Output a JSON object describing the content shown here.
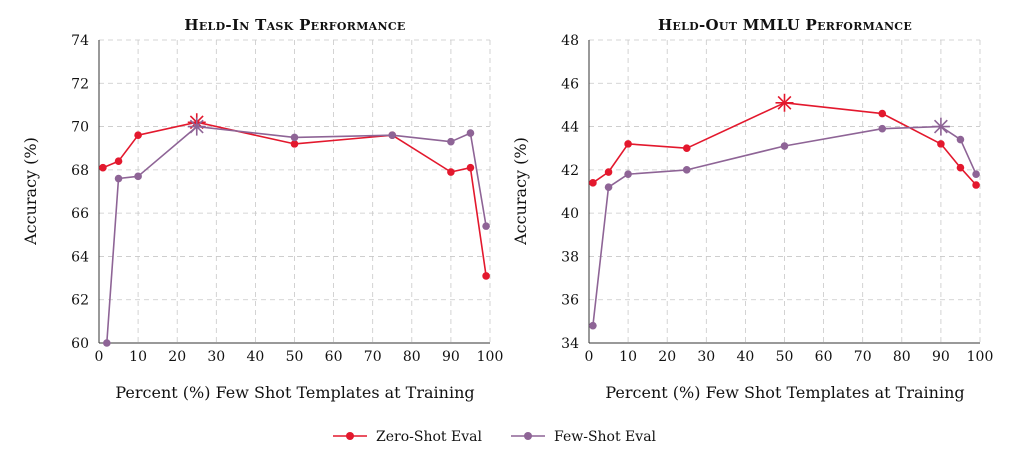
{
  "chart_data": [
    {
      "type": "line",
      "title": "Held-In Task Performance",
      "xlabel": "Percent (%) Few Shot Templates at Training",
      "ylabel": "Accuracy (%)",
      "xlim": [
        0,
        100
      ],
      "ylim": [
        60,
        74
      ],
      "xticks": [
        0,
        10,
        20,
        30,
        40,
        50,
        60,
        70,
        80,
        90,
        100
      ],
      "yticks": [
        60,
        62,
        64,
        66,
        68,
        70,
        72,
        74
      ],
      "grid": true,
      "series": [
        {
          "name": "Zero-Shot Eval",
          "color": "#e3182d",
          "x": [
            1,
            5,
            10,
            25,
            50,
            75,
            90,
            95,
            99
          ],
          "values": [
            68.1,
            68.4,
            69.6,
            70.2,
            69.2,
            69.6,
            67.9,
            68.1,
            63.1
          ],
          "best_index": 3
        },
        {
          "name": "Few-Shot Eval",
          "color": "#8e6496",
          "x": [
            2,
            5,
            10,
            25,
            50,
            75,
            90,
            95,
            99
          ],
          "values": [
            60.0,
            67.6,
            67.7,
            70.0,
            69.5,
            69.6,
            69.3,
            69.7,
            65.4
          ],
          "best_index": 3
        }
      ]
    },
    {
      "type": "line",
      "title": "Held-Out MMLU Performance",
      "xlabel": "Percent (%) Few Shot Templates at Training",
      "ylabel": "Accuracy (%)",
      "xlim": [
        0,
        100
      ],
      "ylim": [
        34,
        48
      ],
      "xticks": [
        0,
        10,
        20,
        30,
        40,
        50,
        60,
        70,
        80,
        90,
        100
      ],
      "yticks": [
        34,
        36,
        38,
        40,
        42,
        44,
        46,
        48
      ],
      "grid": true,
      "series": [
        {
          "name": "Zero-Shot Eval",
          "color": "#e3182d",
          "x": [
            1,
            5,
            10,
            25,
            50,
            75,
            90,
            95,
            99
          ],
          "values": [
            41.4,
            41.9,
            43.2,
            43.0,
            45.1,
            44.6,
            43.2,
            42.1,
            41.3
          ],
          "best_index": 4
        },
        {
          "name": "Few-Shot Eval",
          "color": "#8e6496",
          "x": [
            1,
            5,
            10,
            25,
            50,
            75,
            90,
            95,
            99
          ],
          "values": [
            34.8,
            41.2,
            41.8,
            42.0,
            43.1,
            43.9,
            44.0,
            43.4,
            41.8
          ],
          "best_index": 6
        }
      ]
    }
  ],
  "legend": {
    "position": "bottom-center",
    "items": [
      {
        "label": "Zero-Shot Eval",
        "color": "#e3182d"
      },
      {
        "label": "Few-Shot Eval",
        "color": "#8e6496"
      }
    ]
  }
}
